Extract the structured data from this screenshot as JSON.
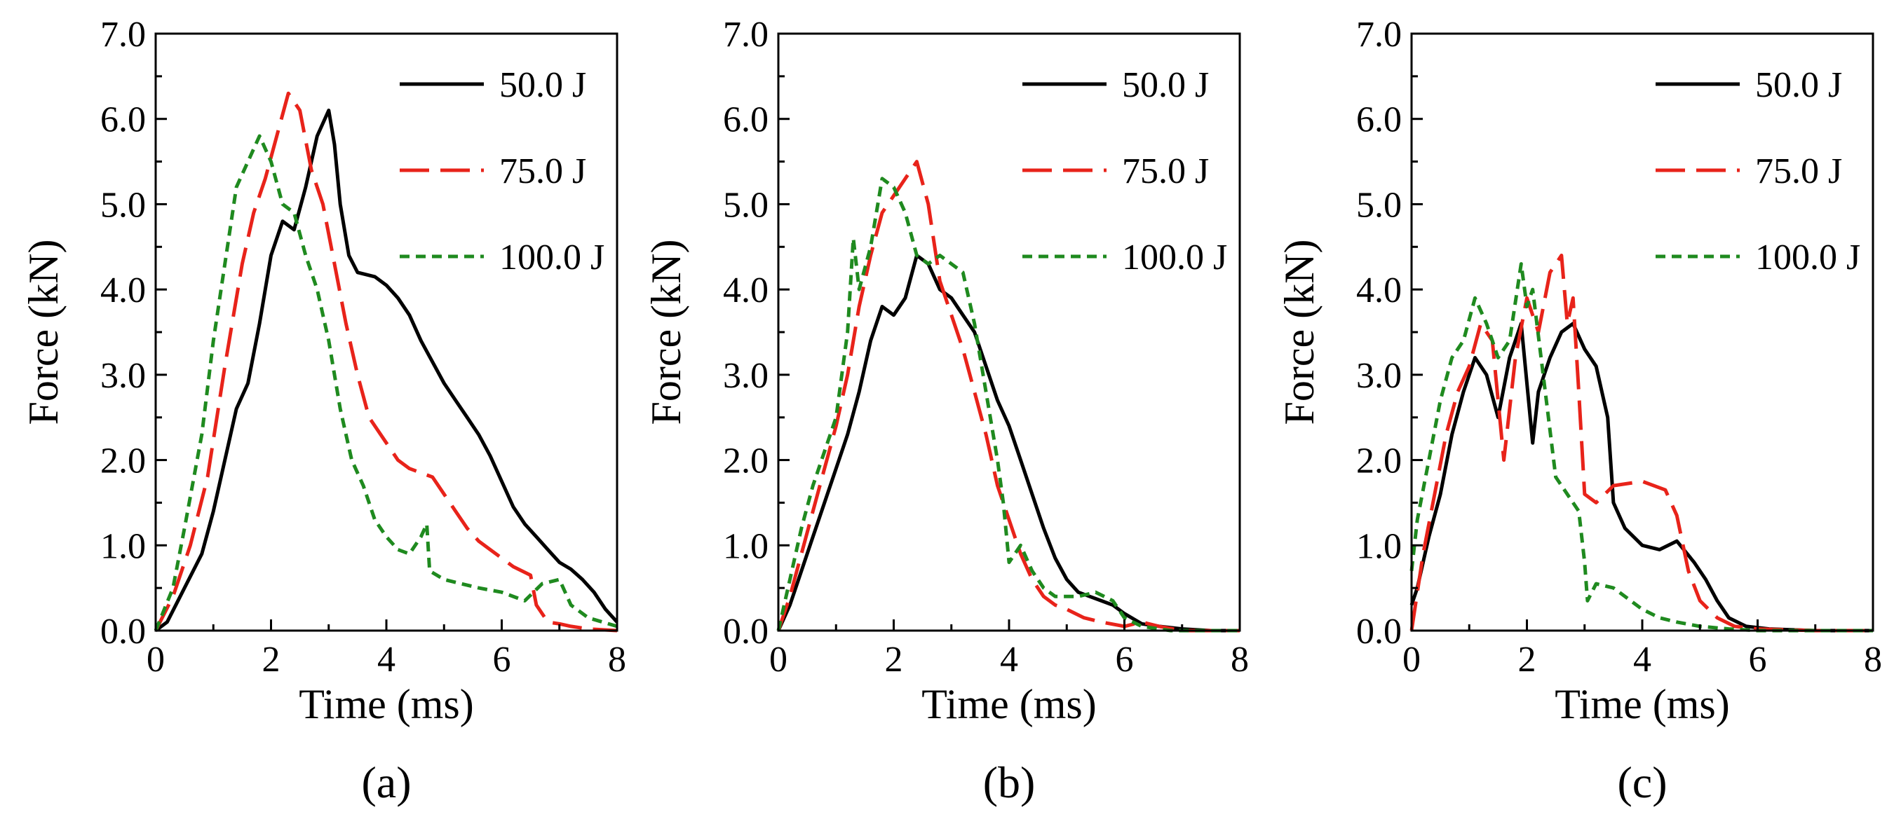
{
  "chart_data": [
    {
      "type": "line",
      "panel": "(a)",
      "xlabel": "Time (ms)",
      "ylabel": "Force (kN)",
      "xlim": [
        0,
        8
      ],
      "ylim": [
        0,
        7
      ],
      "xticks": [
        "0",
        "2",
        "4",
        "6",
        "8"
      ],
      "yticks": [
        "0.0",
        "1.0",
        "2.0",
        "3.0",
        "4.0",
        "5.0",
        "6.0",
        "7.0"
      ],
      "legend_position": "top-right",
      "series": [
        {
          "name": "50.0 J",
          "color": "#000000",
          "dash": "solid",
          "x": [
            0,
            0.2,
            0.5,
            0.8,
            1.0,
            1.2,
            1.4,
            1.6,
            1.8,
            2.0,
            2.2,
            2.4,
            2.6,
            2.8,
            3.0,
            3.1,
            3.2,
            3.35,
            3.5,
            3.8,
            4.0,
            4.2,
            4.4,
            4.6,
            4.8,
            5.0,
            5.2,
            5.4,
            5.6,
            5.8,
            6.0,
            6.2,
            6.4,
            6.6,
            6.8,
            7.0,
            7.2,
            7.4,
            7.6,
            7.8,
            8.0
          ],
          "y": [
            0,
            0.1,
            0.5,
            0.9,
            1.4,
            2.0,
            2.6,
            2.9,
            3.6,
            4.4,
            4.8,
            4.7,
            5.2,
            5.8,
            6.1,
            5.7,
            5.0,
            4.4,
            4.2,
            4.15,
            4.05,
            3.9,
            3.7,
            3.4,
            3.15,
            2.9,
            2.7,
            2.5,
            2.3,
            2.05,
            1.75,
            1.45,
            1.25,
            1.1,
            0.95,
            0.8,
            0.72,
            0.6,
            0.45,
            0.25,
            0.1
          ]
        },
        {
          "name": "75.0 J",
          "color": "#e8231a",
          "dash": "longdash",
          "x": [
            0,
            0.3,
            0.6,
            0.9,
            1.2,
            1.5,
            1.7,
            1.9,
            2.1,
            2.3,
            2.5,
            2.7,
            2.9,
            3.1,
            3.3,
            3.5,
            3.7,
            4.0,
            4.2,
            4.4,
            4.6,
            4.8,
            5.0,
            5.2,
            5.4,
            5.6,
            5.8,
            6.0,
            6.2,
            6.5,
            6.6,
            6.8,
            7.0,
            7.2,
            7.5,
            8.0
          ],
          "y": [
            0,
            0.4,
            1.0,
            1.8,
            3.1,
            4.3,
            4.9,
            5.3,
            5.8,
            6.3,
            6.1,
            5.4,
            5.0,
            4.3,
            3.6,
            3.0,
            2.5,
            2.2,
            2.0,
            1.9,
            1.85,
            1.8,
            1.6,
            1.4,
            1.2,
            1.05,
            0.95,
            0.85,
            0.75,
            0.65,
            0.3,
            0.1,
            0.08,
            0.05,
            0.02,
            0
          ]
        },
        {
          "name": "100.0 J",
          "color": "#1f8a1f",
          "dash": "shortdash",
          "x": [
            0,
            0.3,
            0.5,
            0.8,
            1.0,
            1.2,
            1.4,
            1.6,
            1.8,
            2.0,
            2.2,
            2.4,
            2.6,
            2.8,
            3.0,
            3.2,
            3.4,
            3.6,
            3.8,
            4.0,
            4.2,
            4.4,
            4.6,
            4.7,
            4.75,
            5.0,
            5.3,
            5.6,
            6.0,
            6.4,
            6.7,
            7.0,
            7.2,
            7.5,
            8.0
          ],
          "y": [
            0,
            0.5,
            1.2,
            2.3,
            3.4,
            4.3,
            5.2,
            5.5,
            5.8,
            5.5,
            5.0,
            4.9,
            4.4,
            4.0,
            3.4,
            2.6,
            2.0,
            1.7,
            1.3,
            1.1,
            0.95,
            0.9,
            1.1,
            1.25,
            0.7,
            0.6,
            0.55,
            0.5,
            0.45,
            0.35,
            0.55,
            0.6,
            0.3,
            0.15,
            0.05
          ]
        }
      ]
    },
    {
      "type": "line",
      "panel": "(b)",
      "xlabel": "Time (ms)",
      "ylabel": "Force (kN)",
      "xlim": [
        0,
        8
      ],
      "ylim": [
        0,
        7
      ],
      "xticks": [
        "0",
        "2",
        "4",
        "6",
        "8"
      ],
      "yticks": [
        "0.0",
        "1.0",
        "2.0",
        "3.0",
        "4.0",
        "5.0",
        "6.0",
        "7.0"
      ],
      "legend_position": "top-right",
      "series": [
        {
          "name": "50.0 J",
          "color": "#000000",
          "dash": "solid",
          "x": [
            0,
            0.2,
            0.4,
            0.6,
            0.8,
            1.0,
            1.2,
            1.4,
            1.6,
            1.8,
            2.0,
            2.2,
            2.4,
            2.6,
            2.8,
            3.0,
            3.2,
            3.4,
            3.6,
            3.8,
            4.0,
            4.2,
            4.4,
            4.6,
            4.8,
            5.0,
            5.2,
            5.4,
            5.6,
            5.8,
            6.0,
            6.3,
            6.6,
            7.0,
            7.5,
            8.0
          ],
          "y": [
            0,
            0.3,
            0.7,
            1.1,
            1.5,
            1.9,
            2.3,
            2.8,
            3.4,
            3.8,
            3.7,
            3.9,
            4.4,
            4.3,
            4.0,
            3.9,
            3.7,
            3.5,
            3.1,
            2.7,
            2.4,
            2.0,
            1.6,
            1.2,
            0.85,
            0.6,
            0.45,
            0.4,
            0.35,
            0.3,
            0.2,
            0.08,
            0.05,
            0.02,
            0,
            0
          ]
        },
        {
          "name": "75.0 J",
          "color": "#e8231a",
          "dash": "longdash",
          "x": [
            0,
            0.2,
            0.4,
            0.6,
            0.8,
            1.0,
            1.2,
            1.4,
            1.6,
            1.8,
            2.0,
            2.2,
            2.4,
            2.6,
            2.8,
            3.0,
            3.2,
            3.4,
            3.6,
            3.8,
            4.0,
            4.2,
            4.4,
            4.6,
            4.8,
            5.0,
            5.3,
            5.6,
            6.0,
            6.3,
            6.6,
            7.0,
            8.0
          ],
          "y": [
            0,
            0.4,
            0.9,
            1.4,
            1.9,
            2.4,
            3.0,
            3.8,
            4.4,
            4.9,
            5.1,
            5.3,
            5.5,
            5.0,
            4.1,
            3.7,
            3.3,
            2.8,
            2.3,
            1.7,
            1.3,
            0.9,
            0.6,
            0.4,
            0.3,
            0.25,
            0.15,
            0.1,
            0.05,
            0.1,
            0.05,
            0,
            0
          ]
        },
        {
          "name": "100.0 J",
          "color": "#1f8a1f",
          "dash": "shortdash",
          "x": [
            0,
            0.2,
            0.4,
            0.6,
            0.8,
            1.0,
            1.2,
            1.3,
            1.4,
            1.6,
            1.8,
            2.0,
            2.2,
            2.4,
            2.6,
            2.8,
            3.0,
            3.2,
            3.4,
            3.6,
            3.8,
            3.9,
            4.0,
            4.2,
            4.4,
            4.6,
            4.8,
            5.0,
            5.2,
            5.5,
            5.8,
            6.0,
            6.3,
            6.8,
            8.0
          ],
          "y": [
            0,
            0.6,
            1.2,
            1.7,
            2.1,
            2.5,
            3.5,
            4.6,
            4.0,
            4.5,
            5.3,
            5.2,
            4.9,
            4.4,
            4.3,
            4.4,
            4.3,
            4.2,
            3.6,
            2.8,
            2.0,
            1.5,
            0.8,
            1.0,
            0.7,
            0.5,
            0.4,
            0.4,
            0.4,
            0.45,
            0.35,
            0.15,
            0.05,
            0,
            0
          ]
        }
      ]
    },
    {
      "type": "line",
      "panel": "(c)",
      "xlabel": "Time (ms)",
      "ylabel": "Force (kN)",
      "xlim": [
        0,
        8
      ],
      "ylim": [
        0,
        7
      ],
      "xticks": [
        "0",
        "2",
        "4",
        "6",
        "8"
      ],
      "yticks": [
        "0.0",
        "1.0",
        "2.0",
        "3.0",
        "4.0",
        "5.0",
        "6.0",
        "7.0"
      ],
      "legend_position": "top-right",
      "series": [
        {
          "name": "50.0 J",
          "color": "#000000",
          "dash": "solid",
          "x": [
            0,
            0.1,
            0.3,
            0.5,
            0.7,
            0.9,
            1.1,
            1.3,
            1.5,
            1.7,
            1.9,
            2.0,
            2.1,
            2.2,
            2.4,
            2.6,
            2.8,
            3.0,
            3.2,
            3.4,
            3.5,
            3.7,
            4.0,
            4.3,
            4.6,
            4.9,
            5.1,
            5.3,
            5.5,
            5.8,
            6.2,
            7.0,
            8.0
          ],
          "y": [
            0.3,
            0.5,
            1.1,
            1.6,
            2.3,
            2.8,
            3.2,
            3.0,
            2.5,
            3.2,
            3.6,
            2.9,
            2.2,
            2.8,
            3.2,
            3.5,
            3.6,
            3.3,
            3.1,
            2.5,
            1.5,
            1.2,
            1.0,
            0.95,
            1.05,
            0.8,
            0.6,
            0.35,
            0.15,
            0.05,
            0.02,
            0,
            0
          ]
        },
        {
          "name": "75.0 J",
          "color": "#e8231a",
          "dash": "longdash",
          "x": [
            0,
            0.2,
            0.4,
            0.6,
            0.8,
            1.0,
            1.2,
            1.4,
            1.6,
            1.8,
            2.0,
            2.2,
            2.4,
            2.6,
            2.7,
            2.8,
            2.9,
            3.0,
            3.2,
            3.5,
            4.0,
            4.4,
            4.6,
            4.8,
            5.0,
            5.3,
            5.6,
            6.0,
            7.0,
            8.0
          ],
          "y": [
            0,
            0.9,
            1.6,
            2.3,
            2.8,
            3.1,
            3.6,
            3.4,
            2.0,
            3.2,
            3.9,
            3.5,
            4.2,
            4.4,
            3.6,
            3.9,
            2.8,
            1.6,
            1.5,
            1.7,
            1.75,
            1.65,
            1.35,
            0.7,
            0.35,
            0.15,
            0.05,
            0.02,
            0,
            0
          ]
        },
        {
          "name": "100.0 J",
          "color": "#1f8a1f",
          "dash": "shortdash",
          "x": [
            0,
            0.1,
            0.3,
            0.5,
            0.7,
            0.9,
            1.1,
            1.3,
            1.5,
            1.7,
            1.9,
            2.0,
            2.1,
            2.3,
            2.5,
            2.7,
            2.9,
            3.0,
            3.05,
            3.2,
            3.5,
            3.8,
            4.0,
            4.3,
            4.6,
            5.0,
            5.5,
            6.0,
            7.0,
            8.0
          ],
          "y": [
            0.7,
            1.3,
            2.0,
            2.7,
            3.2,
            3.4,
            3.9,
            3.6,
            3.2,
            3.4,
            4.3,
            3.8,
            4.0,
            2.9,
            1.8,
            1.6,
            1.4,
            0.8,
            0.35,
            0.55,
            0.5,
            0.35,
            0.25,
            0.15,
            0.1,
            0.05,
            0.02,
            0,
            0,
            0
          ]
        }
      ]
    }
  ]
}
